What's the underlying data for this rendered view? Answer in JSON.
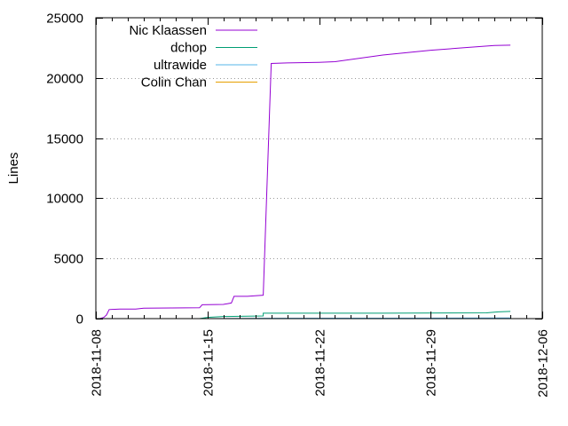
{
  "chart_data": {
    "type": "line",
    "title": "",
    "xlabel": "",
    "ylabel": "Lines",
    "xlim": [
      "2018-11-08",
      "2018-12-06"
    ],
    "ylim": [
      0,
      25000
    ],
    "x_ticks": [
      "2018-11-08",
      "2018-11-15",
      "2018-11-22",
      "2018-11-29",
      "2018-12-06"
    ],
    "y_ticks": [
      0,
      5000,
      10000,
      15000,
      20000,
      25000
    ],
    "grid": "horizontal dotted",
    "legend_position": "top-left",
    "series": [
      {
        "name": "Nic Klaassen",
        "color": "#9400d3",
        "points": [
          [
            "2018-11-08T06:00",
            0
          ],
          [
            "2018-11-08T12:00",
            100
          ],
          [
            "2018-11-08T16:00",
            300
          ],
          [
            "2018-11-08T20:00",
            750
          ],
          [
            "2018-11-09T12:00",
            800
          ],
          [
            "2018-11-10T12:00",
            800
          ],
          [
            "2018-11-11T00:00",
            870
          ],
          [
            "2018-11-14T12:00",
            900
          ],
          [
            "2018-11-14T16:00",
            1150
          ],
          [
            "2018-11-16T00:00",
            1180
          ],
          [
            "2018-11-16T12:00",
            1300
          ],
          [
            "2018-11-16T16:00",
            1850
          ],
          [
            "2018-11-17T12:00",
            1850
          ],
          [
            "2018-11-18T00:00",
            1900
          ],
          [
            "2018-11-18T12:00",
            1950
          ],
          [
            "2018-11-19T00:00",
            21200
          ],
          [
            "2018-11-20T00:00",
            21250
          ],
          [
            "2018-11-22T00:00",
            21300
          ],
          [
            "2018-11-23T00:00",
            21350
          ],
          [
            "2018-11-26T00:00",
            21900
          ],
          [
            "2018-11-29T00:00",
            22300
          ],
          [
            "2018-12-01T00:00",
            22500
          ],
          [
            "2018-12-03T00:00",
            22700
          ],
          [
            "2018-12-04T00:00",
            22720
          ]
        ]
      },
      {
        "name": "dchop",
        "color": "#009e73",
        "points": [
          [
            "2018-11-14T12:00",
            0
          ],
          [
            "2018-11-15T00:00",
            100
          ],
          [
            "2018-11-16T00:00",
            180
          ],
          [
            "2018-11-18T12:00",
            220
          ],
          [
            "2018-11-18T12:01",
            450
          ],
          [
            "2018-11-26T00:00",
            450
          ],
          [
            "2018-12-02T12:00",
            480
          ],
          [
            "2018-12-03T06:00",
            560
          ],
          [
            "2018-12-04T00:00",
            600
          ]
        ]
      },
      {
        "name": "ultrawide",
        "color": "#56b4e9",
        "points": [
          [
            "2018-11-15T00:00",
            0
          ],
          [
            "2018-11-18T12:00",
            30
          ],
          [
            "2018-11-26T00:00",
            40
          ],
          [
            "2018-12-04T00:00",
            50
          ]
        ]
      },
      {
        "name": "Colin Chan",
        "color": "#e69f00",
        "points": [
          [
            "2018-11-15T00:00",
            0
          ],
          [
            "2018-11-20T00:00",
            10
          ],
          [
            "2018-12-04T00:00",
            15
          ]
        ]
      }
    ]
  }
}
